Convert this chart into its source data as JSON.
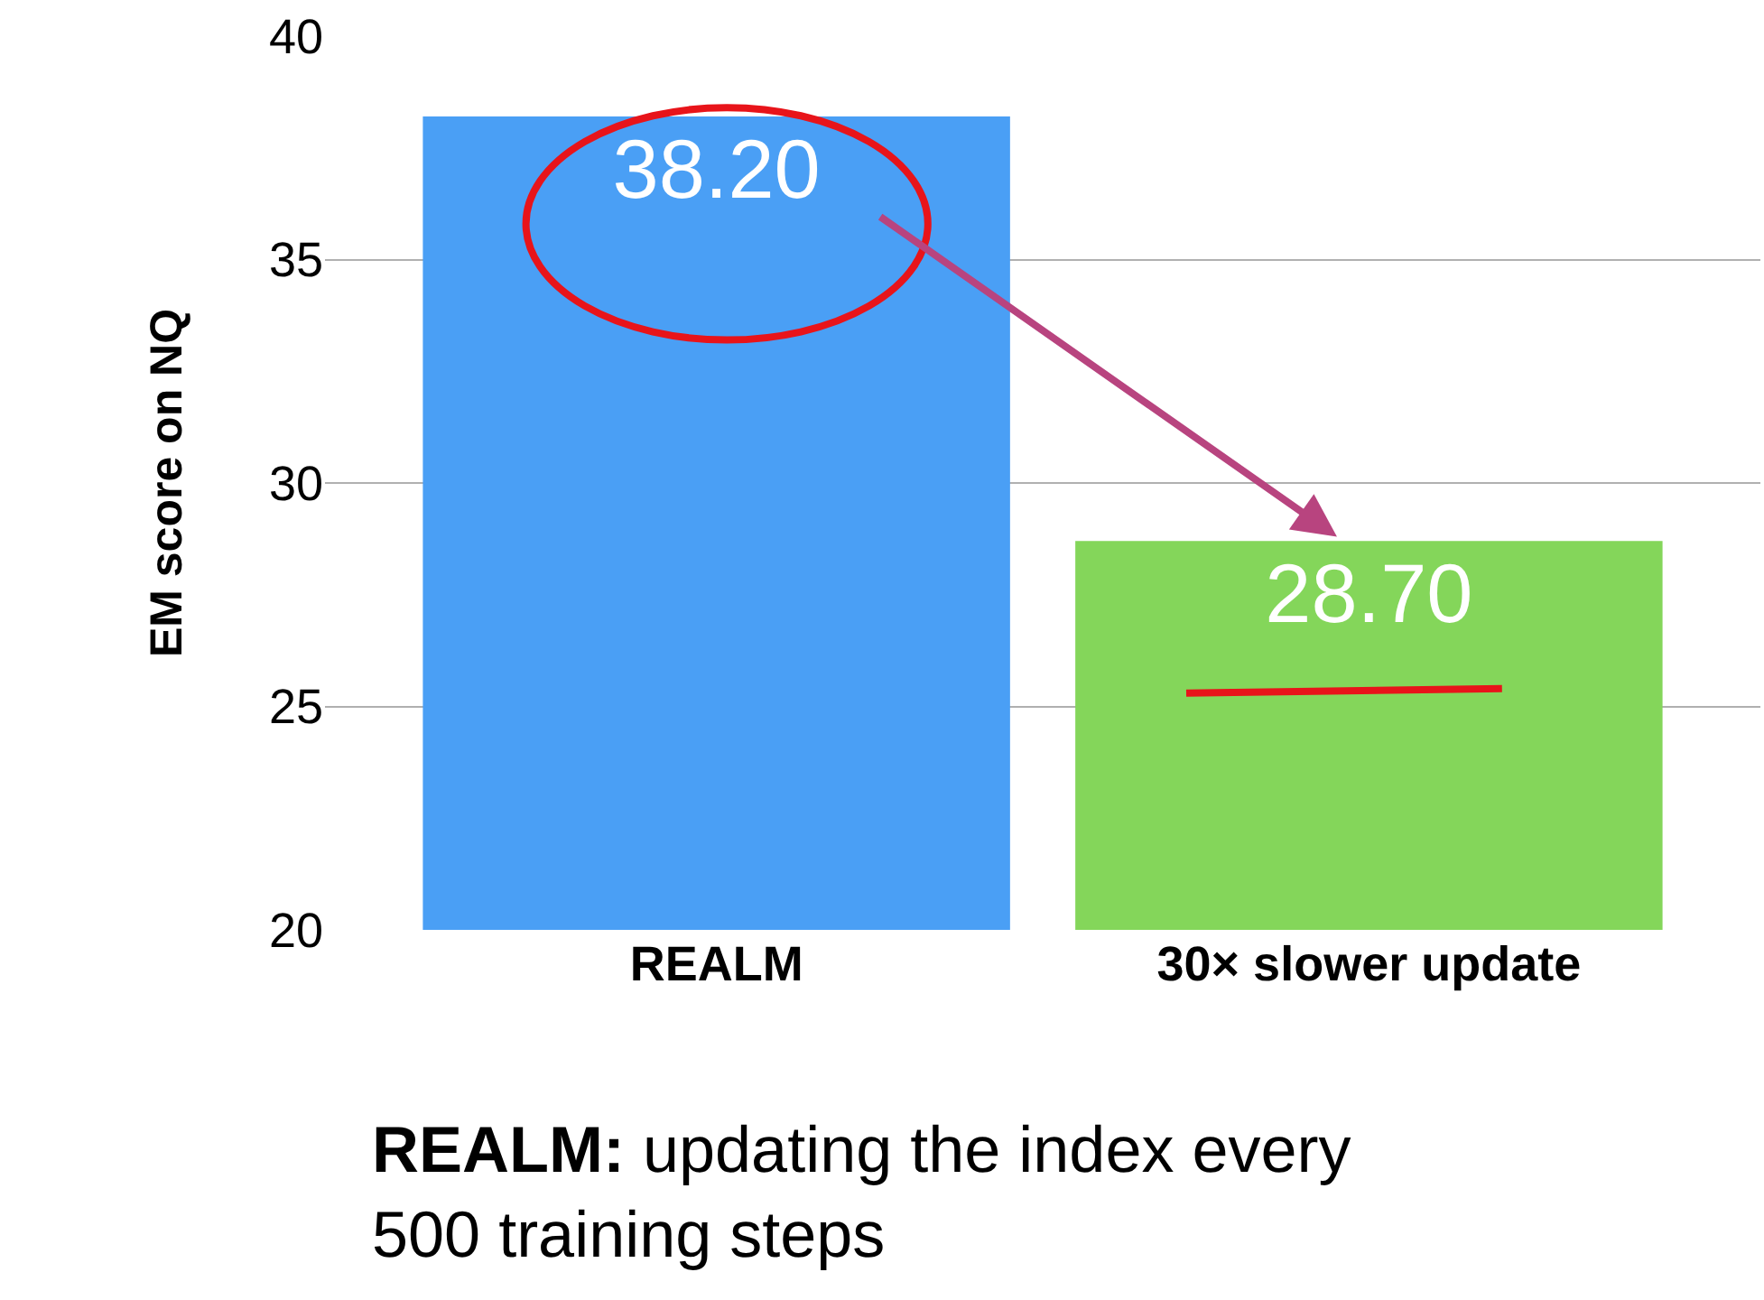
{
  "chart_data": {
    "type": "bar",
    "ylabel": "EM score on NQ",
    "categories": [
      "REALM",
      "30× slower update"
    ],
    "values": [
      38.2,
      28.7
    ],
    "colors": [
      "#4a9ff5",
      "#84d65a"
    ],
    "value_labels": [
      "38.20",
      "28.70"
    ],
    "ylim": [
      20,
      40
    ],
    "yticks": [
      20,
      25,
      30,
      35,
      40
    ],
    "grid": "y",
    "legend": false,
    "annotations": [
      "REALM: updating the index every 500 training steps"
    ]
  }
}
